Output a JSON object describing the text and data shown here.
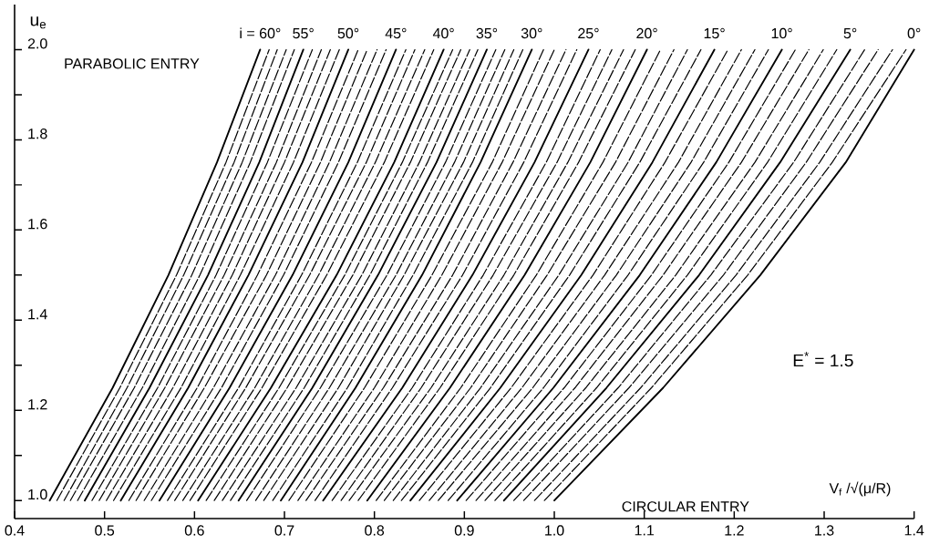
{
  "chart_data": {
    "type": "line",
    "xlabel": "V$_{f}$ /√(μ/R)",
    "ylabel": "u$_{e}$",
    "xlim": [
      0.4,
      1.4
    ],
    "ylim": [
      0.96,
      2.1
    ],
    "xticks": [
      0.4,
      0.5,
      0.6,
      0.7,
      0.8,
      0.9,
      {
        "value": 1.0,
        "label": "1.0"
      },
      1.1,
      1.2,
      1.3,
      1.4
    ],
    "yticks": [
      {
        "value": 1.0,
        "label": "1.0"
      },
      {
        "value": 1.1,
        "label": null
      },
      1.2,
      {
        "value": 1.3,
        "label": null
      },
      1.4,
      {
        "value": 1.5,
        "label": null
      },
      1.6,
      {
        "value": 1.7,
        "label": null
      },
      1.8,
      {
        "value": 1.9,
        "label": null
      },
      {
        "value": 2.0,
        "label": "2.0"
      }
    ],
    "annotations": [
      "PARABOLIC ENTRY",
      "CIRCULAR ENTRY",
      "E$^{*}$ = 1.5"
    ],
    "series": [
      {
        "name": "i = 60°",
        "color": "#000000",
        "line_style": "solid",
        "x": [
          0.439,
          0.509,
          0.571,
          0.625,
          0.673
        ],
        "values": [
          1.0,
          1.25,
          1.5,
          1.75,
          2.0
        ]
      },
      {
        "color": "#000000",
        "line_style": "dashed",
        "x": [
          0.447,
          0.517,
          0.58,
          0.635,
          0.683
        ],
        "values": [
          1.0,
          1.25,
          1.5,
          1.75,
          2.0
        ]
      },
      {
        "color": "#000000",
        "line_style": "dashed",
        "x": [
          0.455,
          0.525,
          0.588,
          0.644,
          0.692
        ],
        "values": [
          1.0,
          1.25,
          1.5,
          1.75,
          2.0
        ]
      },
      {
        "color": "#000000",
        "line_style": "dashed",
        "x": [
          0.462,
          0.533,
          0.597,
          0.653,
          0.702
        ],
        "values": [
          1.0,
          1.25,
          1.5,
          1.75,
          2.0
        ]
      },
      {
        "color": "#000000",
        "line_style": "dashed",
        "x": [
          0.47,
          0.542,
          0.606,
          0.662,
          0.711
        ],
        "values": [
          1.0,
          1.25,
          1.5,
          1.75,
          2.0
        ]
      },
      {
        "name": "55°",
        "color": "#000000",
        "line_style": "solid",
        "x": [
          0.478,
          0.55,
          0.615,
          0.672,
          0.721
        ],
        "values": [
          1.0,
          1.25,
          1.5,
          1.75,
          2.0
        ]
      },
      {
        "color": "#000000",
        "line_style": "dashed",
        "x": [
          0.486,
          0.559,
          0.624,
          0.681,
          0.731
        ],
        "values": [
          1.0,
          1.25,
          1.5,
          1.75,
          2.0
        ]
      },
      {
        "color": "#000000",
        "line_style": "dashed",
        "x": [
          0.494,
          0.567,
          0.633,
          0.691,
          0.741
        ],
        "values": [
          1.0,
          1.25,
          1.5,
          1.75,
          2.0
        ]
      },
      {
        "color": "#000000",
        "line_style": "dashed",
        "x": [
          0.502,
          0.576,
          0.642,
          0.7,
          0.751
        ],
        "values": [
          1.0,
          1.25,
          1.5,
          1.75,
          2.0
        ]
      },
      {
        "color": "#000000",
        "line_style": "dashed",
        "x": [
          0.51,
          0.585,
          0.651,
          0.71,
          0.761
        ],
        "values": [
          1.0,
          1.25,
          1.5,
          1.75,
          2.0
        ]
      },
      {
        "name": "50°",
        "color": "#000000",
        "line_style": "solid",
        "x": [
          0.518,
          0.593,
          0.66,
          0.72,
          0.771
        ],
        "values": [
          1.0,
          1.25,
          1.5,
          1.75,
          2.0
        ]
      },
      {
        "color": "#000000",
        "line_style": "dashed",
        "x": [
          0.527,
          0.603,
          0.67,
          0.73,
          0.782
        ],
        "values": [
          1.0,
          1.25,
          1.5,
          1.75,
          2.0
        ]
      },
      {
        "color": "#000000",
        "line_style": "dashed",
        "x": [
          0.535,
          0.611,
          0.68,
          0.74,
          0.792
        ],
        "values": [
          1.0,
          1.25,
          1.5,
          1.75,
          2.0
        ]
      },
      {
        "color": "#000000",
        "line_style": "dashed",
        "x": [
          0.544,
          0.621,
          0.69,
          0.75,
          0.803
        ],
        "values": [
          1.0,
          1.25,
          1.5,
          1.75,
          2.0
        ]
      },
      {
        "color": "#000000",
        "line_style": "dashed",
        "x": [
          0.552,
          0.63,
          0.699,
          0.76,
          0.813
        ],
        "values": [
          1.0,
          1.25,
          1.5,
          1.75,
          2.0
        ]
      },
      {
        "name": "45°",
        "color": "#000000",
        "line_style": "solid",
        "x": [
          0.561,
          0.639,
          0.709,
          0.771,
          0.824
        ],
        "values": [
          1.0,
          1.25,
          1.5,
          1.75,
          2.0
        ]
      },
      {
        "color": "#000000",
        "line_style": "dashed",
        "x": [
          0.57,
          0.649,
          0.719,
          0.781,
          0.835
        ],
        "values": [
          1.0,
          1.25,
          1.5,
          1.75,
          2.0
        ]
      },
      {
        "color": "#000000",
        "line_style": "dashed",
        "x": [
          0.578,
          0.657,
          0.728,
          0.791,
          0.845
        ],
        "values": [
          1.0,
          1.25,
          1.5,
          1.75,
          2.0
        ]
      },
      {
        "color": "#000000",
        "line_style": "dashed",
        "x": [
          0.587,
          0.667,
          0.738,
          0.801,
          0.856
        ],
        "values": [
          1.0,
          1.25,
          1.5,
          1.75,
          2.0
        ]
      },
      {
        "color": "#000000",
        "line_style": "dashed",
        "x": [
          0.595,
          0.675,
          0.747,
          0.811,
          0.866
        ],
        "values": [
          1.0,
          1.25,
          1.5,
          1.75,
          2.0
        ]
      },
      {
        "name": "40°",
        "color": "#000000",
        "line_style": "solid",
        "x": [
          0.604,
          0.685,
          0.758,
          0.822,
          0.877
        ],
        "values": [
          1.0,
          1.25,
          1.5,
          1.75,
          2.0
        ]
      },
      {
        "color": "#000000",
        "line_style": "dashed",
        "x": [
          0.613,
          0.694,
          0.767,
          0.831,
          0.887
        ],
        "values": [
          1.0,
          1.25,
          1.5,
          1.75,
          2.0
        ]
      },
      {
        "color": "#000000",
        "line_style": "dashed",
        "x": [
          0.622,
          0.703,
          0.776,
          0.84,
          0.896
        ],
        "values": [
          1.0,
          1.25,
          1.5,
          1.75,
          2.0
        ]
      },
      {
        "color": "#000000",
        "line_style": "dashed",
        "x": [
          0.631,
          0.713,
          0.786,
          0.85,
          0.906
        ],
        "values": [
          1.0,
          1.25,
          1.5,
          1.75,
          2.0
        ]
      },
      {
        "color": "#000000",
        "line_style": "dashed",
        "x": [
          0.64,
          0.722,
          0.795,
          0.859,
          0.915
        ],
        "values": [
          1.0,
          1.25,
          1.5,
          1.75,
          2.0
        ]
      },
      {
        "name": "35°",
        "color": "#000000",
        "line_style": "solid",
        "x": [
          0.649,
          0.731,
          0.804,
          0.869,
          0.925
        ],
        "values": [
          1.0,
          1.25,
          1.5,
          1.75,
          2.0
        ]
      },
      {
        "color": "#000000",
        "line_style": "dashed",
        "x": [
          0.658,
          0.74,
          0.814,
          0.879,
          0.935
        ],
        "values": [
          1.0,
          1.25,
          1.5,
          1.75,
          2.0
        ]
      },
      {
        "color": "#000000",
        "line_style": "dashed",
        "x": [
          0.668,
          0.75,
          0.824,
          0.889,
          0.945
        ],
        "values": [
          1.0,
          1.25,
          1.5,
          1.75,
          2.0
        ]
      },
      {
        "color": "#000000",
        "line_style": "dashed",
        "x": [
          0.677,
          0.76,
          0.833,
          0.899,
          0.955
        ],
        "values": [
          1.0,
          1.25,
          1.5,
          1.75,
          2.0
        ]
      },
      {
        "color": "#000000",
        "line_style": "dashed",
        "x": [
          0.687,
          0.77,
          0.843,
          0.909,
          0.965
        ],
        "values": [
          1.0,
          1.25,
          1.5,
          1.75,
          2.0
        ]
      },
      {
        "name": "30°",
        "color": "#000000",
        "line_style": "solid",
        "x": [
          0.696,
          0.779,
          0.853,
          0.918,
          0.975
        ],
        "values": [
          1.0,
          1.25,
          1.5,
          1.75,
          2.0
        ]
      },
      {
        "color": "#000000",
        "line_style": "dashed",
        "x": [
          0.705,
          0.789,
          0.864,
          0.931,
          0.988
        ],
        "values": [
          1.0,
          1.25,
          1.5,
          1.75,
          2.0
        ]
      },
      {
        "color": "#000000",
        "line_style": "dashed",
        "x": [
          0.715,
          0.8,
          0.875,
          0.942,
          1.0
        ],
        "values": [
          1.0,
          1.25,
          1.5,
          1.75,
          2.0
        ]
      },
      {
        "color": "#000000",
        "line_style": "dashed",
        "x": [
          0.724,
          0.81,
          0.887,
          0.954,
          1.013
        ],
        "values": [
          1.0,
          1.25,
          1.5,
          1.75,
          2.0
        ]
      },
      {
        "color": "#000000",
        "line_style": "dashed",
        "x": [
          0.734,
          0.82,
          0.898,
          0.966,
          1.025
        ],
        "values": [
          1.0,
          1.25,
          1.5,
          1.75,
          2.0
        ]
      },
      {
        "name": "25°",
        "color": "#000000",
        "line_style": "solid",
        "x": [
          0.743,
          0.831,
          0.909,
          0.978,
          1.038
        ],
        "values": [
          1.0,
          1.25,
          1.5,
          1.75,
          2.0
        ]
      },
      {
        "color": "#000000",
        "line_style": "dashed",
        "x": [
          0.753,
          0.842,
          0.921,
          0.991,
          1.051
        ],
        "values": [
          1.0,
          1.25,
          1.5,
          1.75,
          2.0
        ]
      },
      {
        "color": "#000000",
        "line_style": "dashed",
        "x": [
          0.763,
          0.852,
          0.932,
          1.003,
          1.064
        ],
        "values": [
          1.0,
          1.25,
          1.5,
          1.75,
          2.0
        ]
      },
      {
        "color": "#000000",
        "line_style": "dashed",
        "x": [
          0.772,
          0.863,
          0.944,
          1.015,
          1.077
        ],
        "values": [
          1.0,
          1.25,
          1.5,
          1.75,
          2.0
        ]
      },
      {
        "color": "#000000",
        "line_style": "dashed",
        "x": [
          0.782,
          0.873,
          0.955,
          1.027,
          1.09
        ],
        "values": [
          1.0,
          1.25,
          1.5,
          1.75,
          2.0
        ]
      },
      {
        "name": "20°",
        "color": "#000000",
        "line_style": "solid",
        "x": [
          0.792,
          0.884,
          0.967,
          1.04,
          1.103
        ],
        "values": [
          1.0,
          1.25,
          1.5,
          1.75,
          2.0
        ]
      },
      {
        "color": "#000000",
        "line_style": "dashed",
        "x": [
          0.802,
          0.896,
          0.98,
          1.054,
          1.118
        ],
        "values": [
          1.0,
          1.25,
          1.5,
          1.75,
          2.0
        ]
      },
      {
        "color": "#000000",
        "line_style": "dashed",
        "x": [
          0.811,
          0.907,
          0.992,
          1.068,
          1.133
        ],
        "values": [
          1.0,
          1.25,
          1.5,
          1.75,
          2.0
        ]
      },
      {
        "color": "#000000",
        "line_style": "dashed",
        "x": [
          0.821,
          0.918,
          1.005,
          1.082,
          1.148
        ],
        "values": [
          1.0,
          1.25,
          1.5,
          1.75,
          2.0
        ]
      },
      {
        "color": "#000000",
        "line_style": "dashed",
        "x": [
          0.83,
          0.929,
          1.017,
          1.095,
          1.163
        ],
        "values": [
          1.0,
          1.25,
          1.5,
          1.75,
          2.0
        ]
      },
      {
        "name": "15°",
        "color": "#000000",
        "line_style": "solid",
        "x": [
          0.84,
          0.94,
          1.03,
          1.109,
          1.178
        ],
        "values": [
          1.0,
          1.25,
          1.5,
          1.75,
          2.0
        ]
      },
      {
        "color": "#000000",
        "line_style": "dashed",
        "x": [
          0.85,
          0.952,
          1.043,
          1.123,
          1.193
        ],
        "values": [
          1.0,
          1.25,
          1.5,
          1.75,
          2.0
        ]
      },
      {
        "color": "#000000",
        "line_style": "dashed",
        "x": [
          0.861,
          0.964,
          1.056,
          1.138,
          1.208
        ],
        "values": [
          1.0,
          1.25,
          1.5,
          1.75,
          2.0
        ]
      },
      {
        "color": "#000000",
        "line_style": "dashed",
        "x": [
          0.871,
          0.976,
          1.069,
          1.152,
          1.223
        ],
        "values": [
          1.0,
          1.25,
          1.5,
          1.75,
          2.0
        ]
      },
      {
        "color": "#000000",
        "line_style": "dashed",
        "x": [
          0.882,
          0.988,
          1.082,
          1.166,
          1.238
        ],
        "values": [
          1.0,
          1.25,
          1.5,
          1.75,
          2.0
        ]
      },
      {
        "name": "10°",
        "color": "#000000",
        "line_style": "solid",
        "x": [
          0.892,
          0.999,
          1.095,
          1.18,
          1.253
        ],
        "values": [
          1.0,
          1.25,
          1.5,
          1.75,
          2.0
        ]
      },
      {
        "color": "#000000",
        "line_style": "dashed",
        "x": [
          0.902,
          1.011,
          1.108,
          1.194,
          1.268
        ],
        "values": [
          1.0,
          1.25,
          1.5,
          1.75,
          2.0
        ]
      },
      {
        "color": "#000000",
        "line_style": "dashed",
        "x": [
          0.913,
          1.023,
          1.121,
          1.208,
          1.283
        ],
        "values": [
          1.0,
          1.25,
          1.5,
          1.75,
          2.0
        ]
      },
      {
        "color": "#000000",
        "line_style": "dashed",
        "x": [
          0.923,
          1.035,
          1.135,
          1.223,
          1.299
        ],
        "values": [
          1.0,
          1.25,
          1.5,
          1.75,
          2.0
        ]
      },
      {
        "color": "#000000",
        "line_style": "dashed",
        "x": [
          0.934,
          1.047,
          1.148,
          1.237,
          1.314
        ],
        "values": [
          1.0,
          1.25,
          1.5,
          1.75,
          2.0
        ]
      },
      {
        "name": "5°",
        "color": "#000000",
        "line_style": "solid",
        "x": [
          0.944,
          1.058,
          1.161,
          1.251,
          1.329
        ],
        "values": [
          1.0,
          1.25,
          1.5,
          1.75,
          2.0
        ]
      },
      {
        "color": "#000000",
        "line_style": "dashed",
        "x": [
          0.955,
          1.071,
          1.174,
          1.266,
          1.345
        ],
        "values": [
          1.0,
          1.25,
          1.5,
          1.75,
          2.0
        ]
      },
      {
        "color": "#000000",
        "line_style": "dashed",
        "x": [
          0.966,
          1.083,
          1.188,
          1.28,
          1.36
        ],
        "values": [
          1.0,
          1.25,
          1.5,
          1.75,
          2.0
        ]
      },
      {
        "color": "#000000",
        "line_style": "dashed",
        "x": [
          0.978,
          1.096,
          1.202,
          1.295,
          1.376
        ],
        "values": [
          1.0,
          1.25,
          1.5,
          1.75,
          2.0
        ]
      },
      {
        "color": "#000000",
        "line_style": "dashed",
        "x": [
          0.989,
          1.108,
          1.215,
          1.309,
          1.391
        ],
        "values": [
          1.0,
          1.25,
          1.5,
          1.75,
          2.0
        ]
      },
      {
        "name": "0°",
        "color": "#000000",
        "line_style": "solid",
        "x": [
          1.0,
          1.121,
          1.229,
          1.324,
          1.4
        ],
        "values": [
          1.0,
          1.25,
          1.5,
          1.75,
          2.0
        ]
      }
    ]
  }
}
